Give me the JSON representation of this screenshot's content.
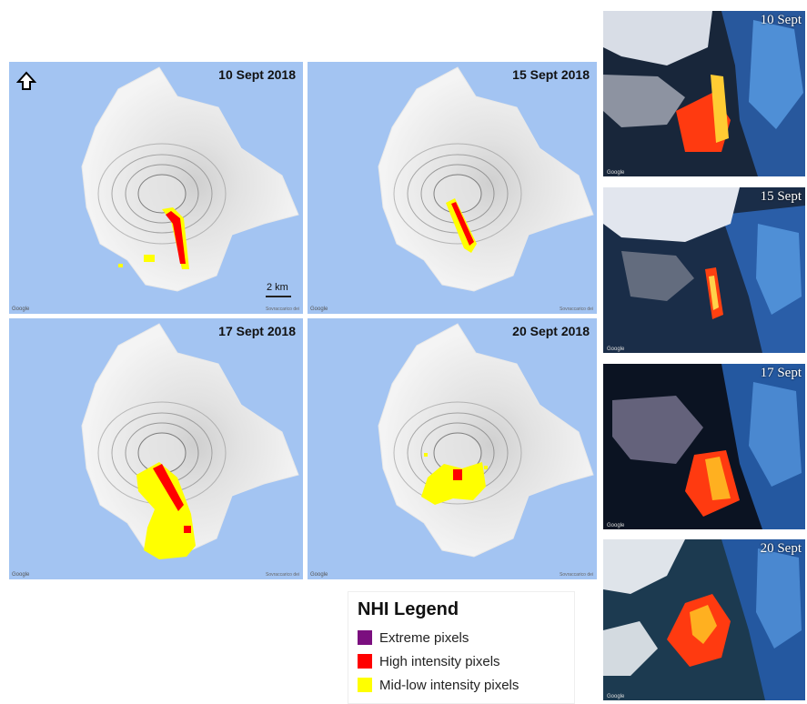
{
  "maps": [
    {
      "date": "10 Sept 2018",
      "google": "Google",
      "attribution": "Sovraccarico dei"
    },
    {
      "date": "15 Sept 2018",
      "google": "Google",
      "attribution": "Sovraccarico dei"
    },
    {
      "date": "17 Sept 2018",
      "google": "Google",
      "attribution": "Sovraccarico dei"
    },
    {
      "date": "20 Sept 2018",
      "google": "Google",
      "attribution": "Sovraccarico dei"
    }
  ],
  "scale_label": "2 km",
  "north_arrow_icon": "north-arrow-icon",
  "satellite": [
    {
      "date": "10 Sept",
      "google": "Google"
    },
    {
      "date": "15 Sept",
      "google": "Google"
    },
    {
      "date": "17 Sept",
      "google": "Google"
    },
    {
      "date": "20 Sept",
      "google": "Google"
    }
  ],
  "legend": {
    "title": "NHI Legend",
    "items": [
      {
        "label": "Extreme pixels",
        "color": "#7b0f7f"
      },
      {
        "label": "High intensity pixels",
        "color": "#ff0000"
      },
      {
        "label": "Mid-low intensity pixels",
        "color": "#ffff00"
      }
    ]
  },
  "colors": {
    "sea": "#a3c4f2",
    "island": "#f0f0f0",
    "high": "#ff0000",
    "midlow": "#ffff00"
  }
}
